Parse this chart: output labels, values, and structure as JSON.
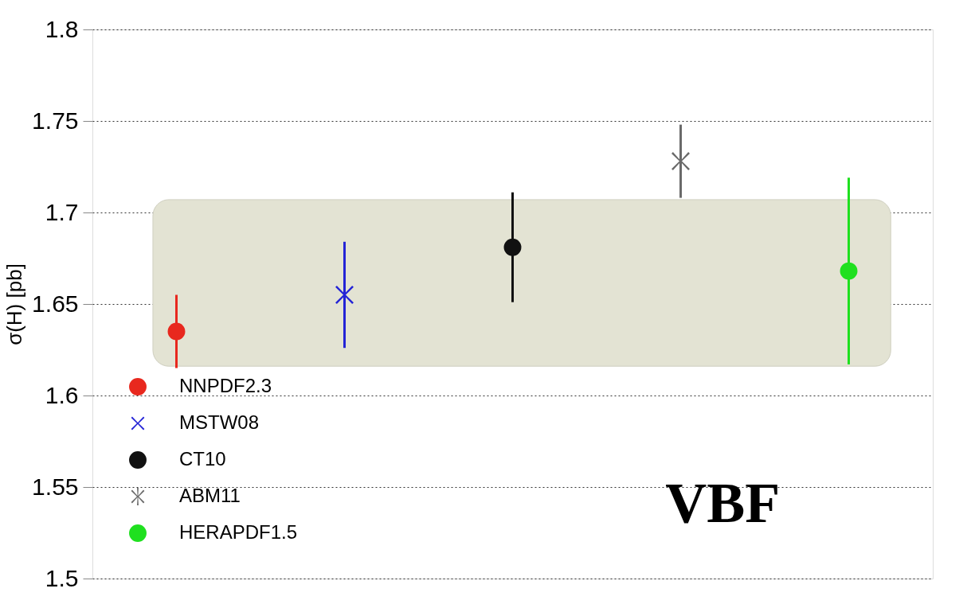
{
  "chart_data": {
    "type": "scatter",
    "ylabel": "σ(H) [pb]",
    "categories": [
      null,
      null,
      null,
      null,
      null
    ],
    "series": [
      {
        "name": "NNPDF2.3",
        "color": "#e8281e",
        "marker": "circle",
        "values": [
          1.635,
          null,
          null,
          null,
          null
        ],
        "errors": [
          [
            1.615,
            1.655
          ],
          null,
          null,
          null,
          null
        ]
      },
      {
        "name": "MSTW08",
        "color": "#2424d6",
        "marker": "cross",
        "values": [
          null,
          1.655,
          null,
          null,
          null
        ],
        "errors": [
          null,
          [
            1.626,
            1.684
          ],
          null,
          null,
          null
        ]
      },
      {
        "name": "CT10",
        "color": "#111111",
        "marker": "circle",
        "values": [
          null,
          null,
          1.681,
          null,
          null
        ],
        "errors": [
          null,
          null,
          [
            1.651,
            1.711
          ],
          null,
          null
        ]
      },
      {
        "name": "ABM11",
        "color": "#6a6a6a",
        "marker": "star",
        "values": [
          null,
          null,
          null,
          1.728,
          null
        ],
        "errors": [
          null,
          null,
          null,
          [
            1.708,
            1.748
          ],
          null
        ]
      },
      {
        "name": "HERAPDF1.5",
        "color": "#1fe01f",
        "marker": "circle",
        "values": [
          null,
          null,
          null,
          null,
          1.668
        ],
        "errors": [
          null,
          null,
          null,
          null,
          [
            1.617,
            1.719
          ]
        ]
      }
    ],
    "bands": [
      {
        "axis": "y",
        "from": 1.616,
        "to": 1.707,
        "color": "#e3e3d3"
      }
    ],
    "ylim": [
      1.5,
      1.8
    ],
    "yticks": [
      1.5,
      1.55,
      1.6,
      1.65,
      1.7,
      1.75,
      1.8
    ],
    "grid": "y",
    "legend": "bottom left",
    "tick_labels": "y",
    "annotations": [
      "VBF"
    ]
  }
}
